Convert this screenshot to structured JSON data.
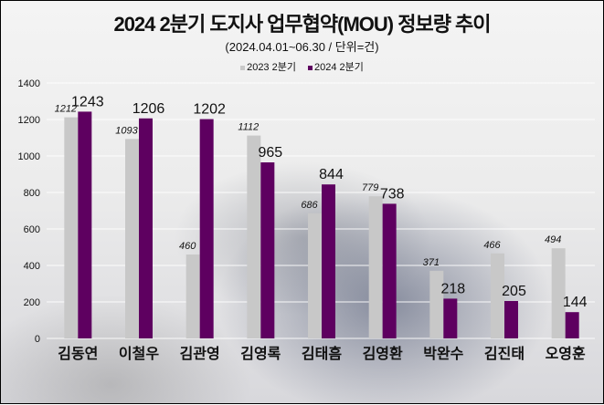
{
  "chart_data": {
    "type": "bar",
    "title": "2024 2분기 도지사 업무협약(MOU) 정보량 추이",
    "subtitle": "(2024.04.01~06.30 / 단위=건)",
    "xlabel": "",
    "ylabel": "",
    "ylim": [
      0,
      1400
    ],
    "yticks": [
      "0",
      "200",
      "400",
      "600",
      "800",
      "1000",
      "1200",
      "1400"
    ],
    "grid": true,
    "legend_position": "top-center",
    "categories": [
      "김동연",
      "이철우",
      "김관영",
      "김영록",
      "김태흠",
      "김영환",
      "박완수",
      "김진태",
      "오영훈"
    ],
    "series": [
      {
        "name": "2023 2분기",
        "color": "#c8c8c8",
        "values": [
          1212,
          1093,
          460,
          1112,
          686,
          779,
          371,
          466,
          494
        ]
      },
      {
        "name": "2024 2분기",
        "color": "#5e0060",
        "values": [
          1243,
          1206,
          1202,
          965,
          844,
          738,
          218,
          205,
          144
        ]
      }
    ]
  }
}
